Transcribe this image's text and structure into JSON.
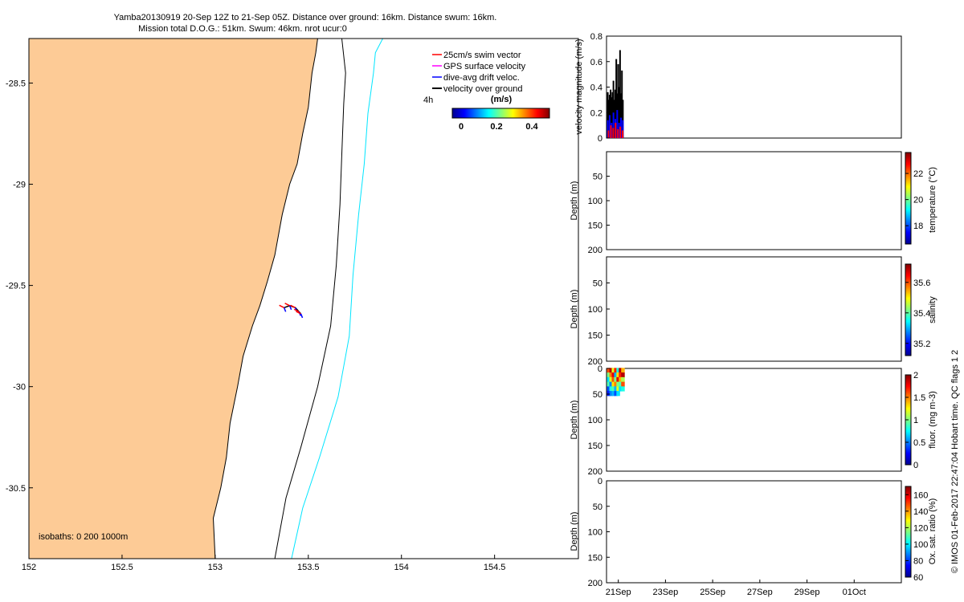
{
  "title": {
    "line1": "Yamba20130919 20-Sep 12Z to 21-Sep 05Z. Distance over ground: 16km. Distance swum: 16km.",
    "line2": "Mission total D.O.G.: 51km. Swum: 46km. nrot ucur:0"
  },
  "colors": {
    "land": "#fdcb96",
    "isobath_200": "#000000",
    "isobath_1000": "#00e5ff",
    "swim_vector": "#ff0000",
    "gps_velocity": "#ff00ff",
    "drift_velocity": "#0000ff",
    "vog": "#000000"
  },
  "chart_data": [
    {
      "type": "map",
      "xlim": [
        152,
        154.95
      ],
      "ylim": [
        -30.85,
        -28.28
      ],
      "xticks": [
        "152",
        "152.5",
        "153",
        "153.5",
        "154",
        "154.5"
      ],
      "xtick_values": [
        152,
        152.5,
        153,
        153.5,
        154,
        154.5
      ],
      "yticks": [
        "-28.5",
        "-29",
        "-29.5",
        "-30",
        "-30.5"
      ],
      "ytick_values": [
        -28.5,
        -29,
        -29.5,
        -30,
        -30.5
      ],
      "legend": [
        {
          "label": "25cm/s swim vector",
          "color": "#ff0000"
        },
        {
          "label": "GPS surface velocity",
          "color": "#ff00ff"
        },
        {
          "label": "dive-avg drift veloc.",
          "color": "#0000ff"
        },
        {
          "label": "velocity over ground",
          "color": "#000000"
        }
      ],
      "vector_scale_label": "4h",
      "colorbar": {
        "label": "(m/s)",
        "ticks": [
          "0",
          "0.2",
          "0.4"
        ],
        "tick_values": [
          0,
          0.2,
          0.4
        ],
        "range": [
          -0.05,
          0.5
        ]
      },
      "isobaths_note": "isobaths: 0   200  1000m",
      "coastline": [
        [
          153.0,
          -30.85
        ],
        [
          152.99,
          -30.65
        ],
        [
          153.03,
          -30.5
        ],
        [
          153.06,
          -30.35
        ],
        [
          153.08,
          -30.18
        ],
        [
          153.12,
          -30.0
        ],
        [
          153.15,
          -29.85
        ],
        [
          153.2,
          -29.7
        ],
        [
          153.24,
          -29.6
        ],
        [
          153.28,
          -29.48
        ],
        [
          153.32,
          -29.35
        ],
        [
          153.36,
          -29.15
        ],
        [
          153.4,
          -29.0
        ],
        [
          153.44,
          -28.9
        ],
        [
          153.47,
          -28.75
        ],
        [
          153.5,
          -28.62
        ],
        [
          153.52,
          -28.45
        ],
        [
          153.54,
          -28.35
        ],
        [
          153.55,
          -28.28
        ]
      ],
      "isobath_200": [
        [
          153.32,
          -30.85
        ],
        [
          153.38,
          -30.55
        ],
        [
          153.46,
          -30.3
        ],
        [
          153.55,
          -30.0
        ],
        [
          153.62,
          -29.7
        ],
        [
          153.65,
          -29.4
        ],
        [
          153.67,
          -29.1
        ],
        [
          153.68,
          -28.85
        ],
        [
          153.69,
          -28.6
        ],
        [
          153.7,
          -28.45
        ],
        [
          153.68,
          -28.28
        ]
      ],
      "isobath_1000": [
        [
          153.41,
          -30.85
        ],
        [
          153.47,
          -30.6
        ],
        [
          153.56,
          -30.35
        ],
        [
          153.66,
          -30.05
        ],
        [
          153.72,
          -29.75
        ],
        [
          153.74,
          -29.45
        ],
        [
          153.77,
          -29.15
        ],
        [
          153.8,
          -28.9
        ],
        [
          153.82,
          -28.65
        ],
        [
          153.85,
          -28.45
        ],
        [
          153.86,
          -28.35
        ],
        [
          153.9,
          -28.28
        ]
      ],
      "track": [
        [
          153.37,
          -29.61
        ],
        [
          153.4,
          -29.6
        ],
        [
          153.43,
          -29.61
        ],
        [
          153.45,
          -29.63
        ],
        [
          153.46,
          -29.64
        ]
      ]
    },
    {
      "type": "bar",
      "ylabel": "velocity magnitude (m/s)",
      "ylim": [
        0,
        0.8
      ],
      "yticks": [
        "0",
        "0.2",
        "0.4",
        "0.6",
        "0.8"
      ],
      "ytick_values": [
        0,
        0.2,
        0.4,
        0.6,
        0.8
      ],
      "xlim": [
        20.5,
        33.0
      ],
      "series": [
        {
          "color": "#000000",
          "x": [
            20.52,
            20.56,
            20.6,
            20.64,
            20.68,
            20.72,
            20.76,
            20.8,
            20.84,
            20.88,
            20.92,
            20.96,
            21.0,
            21.04,
            21.08,
            21.12,
            21.16
          ],
          "values": [
            0.36,
            0.3,
            0.34,
            0.38,
            0.32,
            0.36,
            0.45,
            0.3,
            0.38,
            0.62,
            0.35,
            0.58,
            0.4,
            0.69,
            0.35,
            0.53,
            0.3
          ]
        },
        {
          "color": "#0000ff",
          "x": [
            20.52,
            20.6,
            20.68,
            20.76,
            20.84,
            20.92,
            21.0,
            21.08,
            21.16
          ],
          "values": [
            0.14,
            0.18,
            0.12,
            0.2,
            0.15,
            0.22,
            0.12,
            0.16,
            0.14
          ]
        },
        {
          "color": "#ff0000",
          "x": [
            20.55,
            20.65,
            20.75,
            20.85,
            20.95,
            21.05,
            21.15
          ],
          "values": [
            0.06,
            0.1,
            0.08,
            0.12,
            0.07,
            0.09,
            0.06
          ]
        }
      ]
    },
    {
      "type": "heatmap",
      "ylabel": "Depth (m)",
      "ylim": [
        0,
        200
      ],
      "yticks": [
        "50",
        "100",
        "150",
        "200"
      ],
      "ytick_values": [
        50,
        100,
        150,
        200
      ],
      "colorbar": {
        "label": "temperature (°C)",
        "ticks": [
          "18",
          "20",
          "22"
        ],
        "tick_values": [
          18,
          20,
          22
        ],
        "range": [
          16.6,
          23.6
        ]
      }
    },
    {
      "type": "heatmap",
      "ylabel": "Depth (m)",
      "ylim": [
        0,
        200
      ],
      "yticks": [
        "50",
        "100",
        "150",
        "200"
      ],
      "ytick_values": [
        50,
        100,
        150,
        200
      ],
      "colorbar": {
        "label": "salinity",
        "ticks": [
          "35.2",
          "35.4",
          "35.6"
        ],
        "tick_values": [
          35.2,
          35.4,
          35.6
        ],
        "range": [
          35.12,
          35.72
        ]
      }
    },
    {
      "type": "heatmap",
      "ylabel": "Depth (m)",
      "ylim": [
        0,
        200
      ],
      "yticks": [
        "0",
        "50",
        "100",
        "150",
        "200"
      ],
      "ytick_values": [
        0,
        50,
        100,
        150,
        200
      ],
      "colorbar": {
        "label": "fluor. (mg m-3)",
        "ticks": [
          "0",
          "0.5",
          "1",
          "1.5",
          "2"
        ],
        "tick_values": [
          0,
          0.5,
          1,
          1.5,
          2
        ],
        "range": [
          0,
          2
        ]
      },
      "x": [
        20.52,
        20.62,
        20.72,
        20.82,
        20.92,
        21.02,
        21.12
      ],
      "depths": [
        3,
        12,
        21,
        30,
        39,
        48
      ],
      "values": [
        [
          1.6,
          1.9,
          1.2,
          1.7,
          0.8,
          1.9,
          1.4
        ],
        [
          1.0,
          1.5,
          1.8,
          0.6,
          1.3,
          1.7,
          1.9
        ],
        [
          0.7,
          1.2,
          1.6,
          1.0,
          1.8,
          1.4,
          1.1
        ],
        [
          0.9,
          0.5,
          1.3,
          1.5,
          1.0,
          0.9,
          1.6
        ],
        [
          0.4,
          0.8,
          0.9,
          0.6,
          1.2,
          0.7,
          0.8
        ],
        [
          0.3,
          0.5,
          0.6,
          0.4,
          0.7,
          null,
          null
        ]
      ]
    },
    {
      "type": "heatmap",
      "ylabel": "Depth (m)",
      "ylim": [
        0,
        200
      ],
      "yticks": [
        "0",
        "50",
        "100",
        "150",
        "200"
      ],
      "ytick_values": [
        0,
        50,
        100,
        150,
        200
      ],
      "xlim": [
        20.5,
        33.0
      ],
      "xticks": [
        "21Sep",
        "23Sep",
        "25Sep",
        "27Sep",
        "29Sep",
        "01Oct"
      ],
      "xtick_values": [
        21,
        23,
        25,
        27,
        29,
        31
      ],
      "colorbar": {
        "label": "Ox. sat. ratio (%)",
        "ticks": [
          "60",
          "80",
          "100",
          "120",
          "140",
          "160"
        ],
        "tick_values": [
          60,
          80,
          100,
          120,
          140,
          160
        ],
        "range": [
          60,
          170
        ]
      }
    }
  ],
  "footer_note": "© IMOS 01-Feb-2017 22:47:04 Hobart time. QC flags 1  2"
}
